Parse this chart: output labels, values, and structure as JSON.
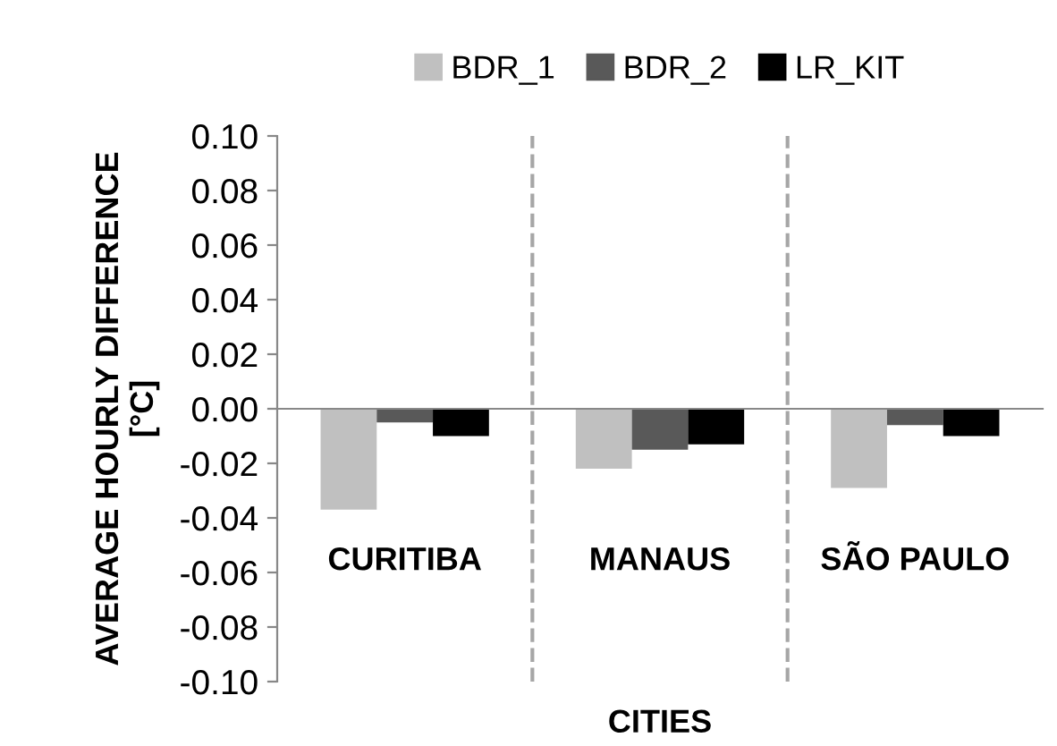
{
  "chart_data": {
    "type": "bar",
    "xlabel": "CITIES",
    "ylabel": "AVERAGE HOURLY DIFFERENCE\n[°C]",
    "categories": [
      "CURITIBA",
      "MANAUS",
      "SÃO PAULO"
    ],
    "series": [
      {
        "name": "BDR_1",
        "color": "#c0c0c0",
        "values": [
          -0.037,
          -0.022,
          -0.029
        ]
      },
      {
        "name": "BDR_2",
        "color": "#595959",
        "values": [
          -0.005,
          -0.015,
          -0.006
        ]
      },
      {
        "name": "LR_KIT",
        "color": "#000000",
        "values": [
          -0.01,
          -0.013,
          -0.01
        ]
      }
    ],
    "ylim": [
      -0.1,
      0.1
    ],
    "yticks": [
      {
        "value": -0.1,
        "label": "-0.10"
      },
      {
        "value": -0.08,
        "label": "-0.08"
      },
      {
        "value": -0.06,
        "label": "-0.06"
      },
      {
        "value": -0.04,
        "label": "-0.04"
      },
      {
        "value": -0.02,
        "label": "-0.02"
      },
      {
        "value": 0,
        "label": "0.00"
      },
      {
        "value": 0.02,
        "label": "0.02"
      },
      {
        "value": 0.04,
        "label": "0.04"
      },
      {
        "value": 0.06,
        "label": "0.06"
      },
      {
        "value": 0.08,
        "label": "0.08"
      },
      {
        "value": 0.1,
        "label": "0.10"
      }
    ],
    "grid": "x",
    "legend": "top"
  }
}
